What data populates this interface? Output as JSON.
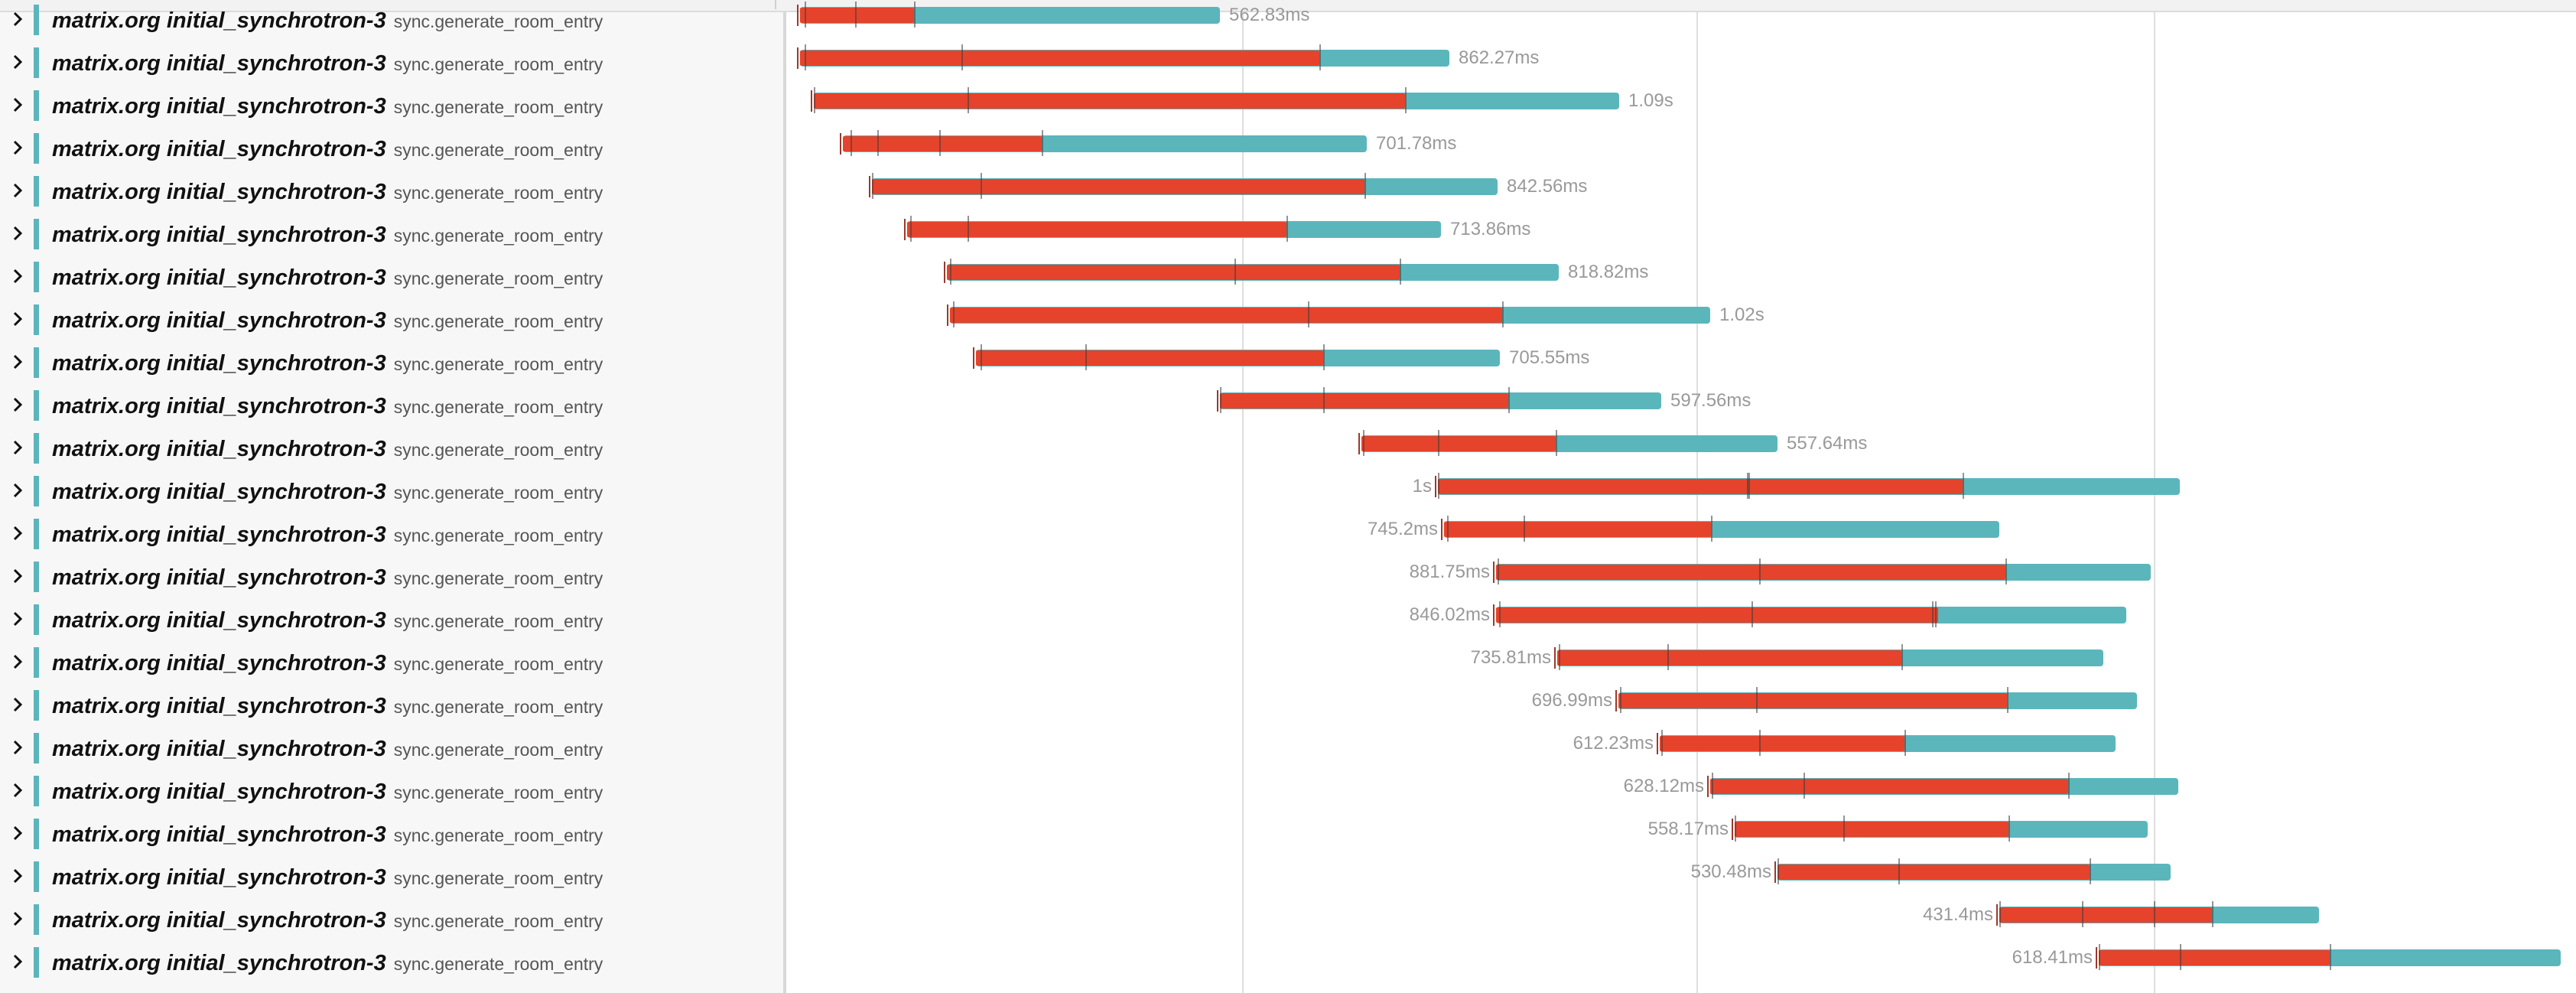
{
  "colors": {
    "service_accent": "#5bb6bc",
    "bar_total": "#5bb6bc",
    "bar_self": "#e5432b",
    "duration_text": "#999999"
  },
  "icons": {
    "expander": "chevron-right-icon"
  },
  "rows": [
    {
      "service": "matrix.org initial_synchrotron-3",
      "operation": "sync.generate_room_entry",
      "duration": "562.83ms"
    },
    {
      "service": "matrix.org initial_synchrotron-3",
      "operation": "sync.generate_room_entry",
      "duration": "862.27ms"
    },
    {
      "service": "matrix.org initial_synchrotron-3",
      "operation": "sync.generate_room_entry",
      "duration": "1.09s"
    },
    {
      "service": "matrix.org initial_synchrotron-3",
      "operation": "sync.generate_room_entry",
      "duration": "701.78ms"
    },
    {
      "service": "matrix.org initial_synchrotron-3",
      "operation": "sync.generate_room_entry",
      "duration": "842.56ms"
    },
    {
      "service": "matrix.org initial_synchrotron-3",
      "operation": "sync.generate_room_entry",
      "duration": "713.86ms"
    },
    {
      "service": "matrix.org initial_synchrotron-3",
      "operation": "sync.generate_room_entry",
      "duration": "818.82ms"
    },
    {
      "service": "matrix.org initial_synchrotron-3",
      "operation": "sync.generate_room_entry",
      "duration": "1.02s"
    },
    {
      "service": "matrix.org initial_synchrotron-3",
      "operation": "sync.generate_room_entry",
      "duration": "705.55ms"
    },
    {
      "service": "matrix.org initial_synchrotron-3",
      "operation": "sync.generate_room_entry",
      "duration": "597.56ms"
    },
    {
      "service": "matrix.org initial_synchrotron-3",
      "operation": "sync.generate_room_entry",
      "duration": "557.64ms"
    },
    {
      "service": "matrix.org initial_synchrotron-3",
      "operation": "sync.generate_room_entry",
      "duration": "1s"
    },
    {
      "service": "matrix.org initial_synchrotron-3",
      "operation": "sync.generate_room_entry",
      "duration": "745.2ms"
    },
    {
      "service": "matrix.org initial_synchrotron-3",
      "operation": "sync.generate_room_entry",
      "duration": "881.75ms"
    },
    {
      "service": "matrix.org initial_synchrotron-3",
      "operation": "sync.generate_room_entry",
      "duration": "846.02ms"
    },
    {
      "service": "matrix.org initial_synchrotron-3",
      "operation": "sync.generate_room_entry",
      "duration": "735.81ms"
    },
    {
      "service": "matrix.org initial_synchrotron-3",
      "operation": "sync.generate_room_entry",
      "duration": "696.99ms"
    },
    {
      "service": "matrix.org initial_synchrotron-3",
      "operation": "sync.generate_room_entry",
      "duration": "612.23ms"
    },
    {
      "service": "matrix.org initial_synchrotron-3",
      "operation": "sync.generate_room_entry",
      "duration": "628.12ms"
    },
    {
      "service": "matrix.org initial_synchrotron-3",
      "operation": "sync.generate_room_entry",
      "duration": "558.17ms"
    },
    {
      "service": "matrix.org initial_synchrotron-3",
      "operation": "sync.generate_room_entry",
      "duration": "530.48ms"
    },
    {
      "service": "matrix.org initial_synchrotron-3",
      "operation": "sync.generate_room_entry",
      "duration": "431.4ms"
    },
    {
      "service": "matrix.org initial_synchrotron-3",
      "operation": "sync.generate_room_entry",
      "duration": "618.41ms"
    }
  ]
}
